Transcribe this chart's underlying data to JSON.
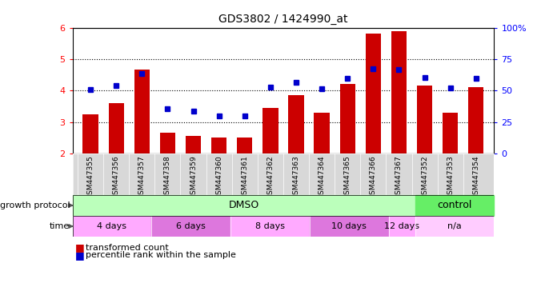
{
  "title": "GDS3802 / 1424990_at",
  "samples": [
    "GSM447355",
    "GSM447356",
    "GSM447357",
    "GSM447358",
    "GSM447359",
    "GSM447360",
    "GSM447361",
    "GSM447362",
    "GSM447363",
    "GSM447364",
    "GSM447365",
    "GSM447366",
    "GSM447367",
    "GSM447352",
    "GSM447353",
    "GSM447354"
  ],
  "red_values": [
    3.25,
    3.6,
    4.67,
    2.67,
    2.55,
    2.5,
    2.5,
    3.45,
    3.85,
    3.3,
    4.2,
    5.82,
    5.88,
    4.15,
    3.3,
    4.1
  ],
  "blue_values": [
    4.02,
    4.15,
    4.55,
    3.42,
    3.35,
    3.2,
    3.2,
    4.1,
    4.27,
    4.05,
    4.38,
    4.7,
    4.68,
    4.42,
    4.08,
    4.38
  ],
  "ylim_left": [
    2,
    6
  ],
  "ylim_right": [
    0,
    100
  ],
  "yticks_left": [
    2,
    3,
    4,
    5,
    6
  ],
  "yticks_right": [
    0,
    25,
    50,
    75,
    100
  ],
  "bar_color": "#cc0000",
  "dot_color": "#0000cc",
  "grid_dotted_at": [
    3,
    4,
    5
  ],
  "dmso_color": "#bbffbb",
  "control_color": "#66ee66",
  "time_colors": [
    "#ffaaff",
    "#dd77dd",
    "#ffaaff",
    "#dd77dd",
    "#ffaaff",
    "#ffaaff"
  ],
  "time_groups": [
    {
      "label": "4 days",
      "start": 0,
      "end": 3
    },
    {
      "label": "6 days",
      "start": 3,
      "end": 6
    },
    {
      "label": "8 days",
      "start": 6,
      "end": 9
    },
    {
      "label": "10 days",
      "start": 9,
      "end": 12
    },
    {
      "label": "12 days",
      "start": 12,
      "end": 13
    },
    {
      "label": "n/a",
      "start": 13,
      "end": 16
    }
  ],
  "legend_red": "transformed count",
  "legend_blue": "percentile rank within the sample",
  "label_growth": "growth protocol",
  "label_time": "time"
}
